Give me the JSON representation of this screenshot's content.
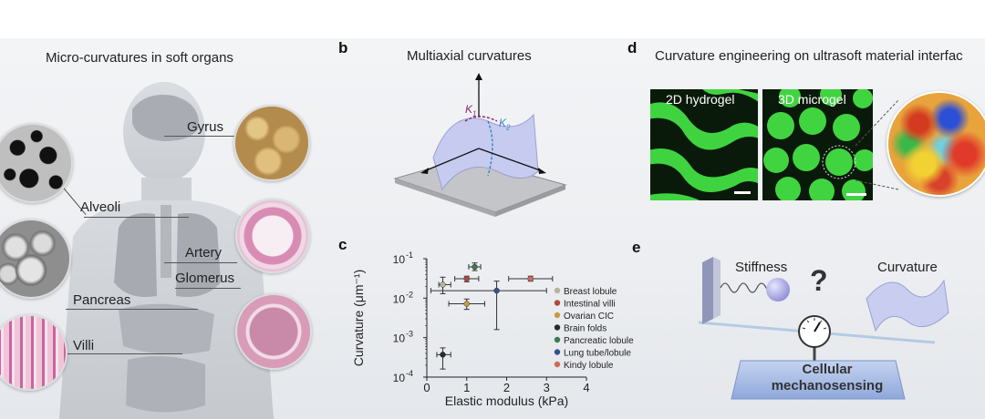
{
  "panel_a": {
    "title": "Micro-curvatures in soft organs",
    "labels": {
      "gyrus": "Gyrus",
      "alveoli": "Alveoli",
      "artery": "Artery",
      "pancreas": "Pancreas",
      "glomerus": "Glomerus",
      "villi": "Villi"
    }
  },
  "panel_b": {
    "letter": "b",
    "title": "Multiaxial curvatures",
    "k1": "K",
    "k1_sub": "1",
    "k2": "K",
    "k2_sub": "2"
  },
  "panel_c": {
    "letter": "c"
  },
  "panel_d": {
    "letter": "d",
    "title": "Curvature engineering on ultrasoft material interfac",
    "label_2d": "2D hydrogel",
    "label_3d": "3D microgel"
  },
  "panel_e": {
    "letter": "e",
    "stiffness": "Stiffness",
    "curvature": "Curvature",
    "question": "?",
    "box_line1": "Cellular",
    "box_line2": "mechanosensing"
  },
  "chart_data": {
    "type": "scatter",
    "xlabel": "Elastic modulus (kPa)",
    "ylabel": "Curvature (μm⁻¹)",
    "xlim": [
      0,
      4
    ],
    "ylim_log10": [
      -4,
      -1
    ],
    "x_ticks": [
      "0",
      "1",
      "2",
      "3",
      "4"
    ],
    "y_ticks": [
      "10",
      "10",
      "10",
      "10"
    ],
    "y_tick_exps": [
      "-1",
      "-2",
      "-3",
      "-4"
    ],
    "y_tick_values": [
      0.1,
      0.01,
      0.001,
      0.0001
    ],
    "log_y": true,
    "legend_position": "right",
    "series": [
      {
        "name": "Breast lobule",
        "color": "#b8b49a",
        "x": 0.4,
        "y": 0.022,
        "xerr": [
          0.3,
          0.6
        ],
        "yerr": [
          0.013,
          0.034
        ]
      },
      {
        "name": "Intestinal villi",
        "color": "#b5473b",
        "x": 1.0,
        "y": 0.031,
        "xerr": [
          0.7,
          1.3
        ],
        "yerr": [
          0.026,
          0.036
        ]
      },
      {
        "name": "Ovarian CIC",
        "color": "#c99a44",
        "x": 1.0,
        "y": 0.0072,
        "xerr": [
          0.55,
          1.45
        ],
        "yerr": [
          0.0052,
          0.0095
        ]
      },
      {
        "name": "Brain folds",
        "color": "#2a2a2a",
        "x": 0.4,
        "y": 0.00037,
        "xerr": [
          0.25,
          0.6
        ],
        "yerr": [
          0.00016,
          0.00055
        ]
      },
      {
        "name": "Pancreatic lobule",
        "color": "#3f7a4a",
        "x": 1.2,
        "y": 0.062,
        "xerr": [
          1.05,
          1.35
        ],
        "yerr": [
          0.05,
          0.078
        ]
      },
      {
        "name": "Lung tube/lobule",
        "color": "#3a4f8f",
        "x": 1.75,
        "y": 0.0155,
        "xerr": [
          0.1,
          3.0
        ],
        "yerr": [
          0.0016,
          0.027
        ]
      },
      {
        "name": "Kindy lobule",
        "color": "#d06b5a",
        "x": 2.6,
        "y": 0.031,
        "xerr": [
          2.05,
          3.15
        ],
        "yerr": [
          0.027,
          0.036
        ]
      }
    ]
  },
  "colors": {
    "body_silhouette": "#cfd2d6",
    "green_gel": "#3ccb3c",
    "surface_blue": "#c9cdf0"
  },
  "icons": [
    "human-silhouette",
    "tissue-micrograph",
    "curved-surface",
    "spring",
    "gauge",
    "heatmap-sphere"
  ]
}
